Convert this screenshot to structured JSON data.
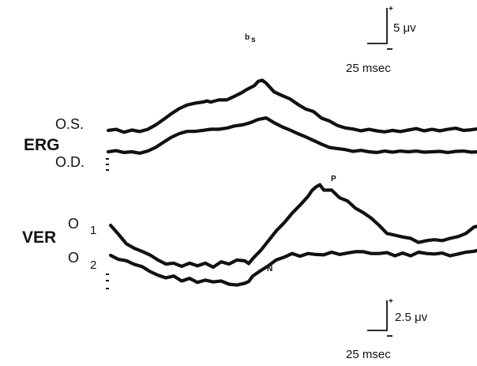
{
  "chart_data": [
    {
      "type": "line",
      "title": "",
      "group_label": "ERG",
      "xlabel": "",
      "ylabel": "",
      "x_scale_bar": "25 msec",
      "y_scale_bar": "5 μv",
      "peak_labels": [
        {
          "text": "b",
          "subscript": "s",
          "series": "O.S."
        }
      ],
      "series": [
        {
          "name": "O.S.",
          "points": [
            [
              0,
              0
            ],
            [
              10,
              0.3
            ],
            [
              20,
              -0.5
            ],
            [
              30,
              0.1
            ],
            [
              40,
              -0.3
            ],
            [
              50,
              0.3
            ],
            [
              60,
              1.5
            ],
            [
              70,
              3
            ],
            [
              80,
              4.6
            ],
            [
              90,
              6
            ],
            [
              100,
              7
            ],
            [
              110,
              7.5
            ],
            [
              120,
              7.8
            ],
            [
              125,
              8.1
            ],
            [
              130,
              7.8
            ],
            [
              140,
              8.4
            ],
            [
              150,
              8.4
            ],
            [
              160,
              9.4
            ],
            [
              170,
              10.5
            ],
            [
              175,
              11.2
            ],
            [
              185,
              12.3
            ],
            [
              190,
              13.5
            ],
            [
              195,
              13.8
            ],
            [
              200,
              13
            ],
            [
              210,
              10.6
            ],
            [
              220,
              9.6
            ],
            [
              230,
              8.7
            ],
            [
              240,
              7.2
            ],
            [
              250,
              5.9
            ],
            [
              260,
              5.2
            ],
            [
              270,
              3.4
            ],
            [
              280,
              2.6
            ],
            [
              290,
              1.4
            ],
            [
              300,
              0.7
            ],
            [
              310,
              0.4
            ],
            [
              320,
              -0.1
            ],
            [
              330,
              0.3
            ],
            [
              340,
              -0.1
            ],
            [
              350,
              -0.4
            ],
            [
              360,
              0
            ],
            [
              370,
              -0.3
            ],
            [
              380,
              0.1
            ],
            [
              390,
              0.5
            ],
            [
              400,
              -0.1
            ],
            [
              410,
              0.3
            ],
            [
              420,
              -0.1
            ],
            [
              430,
              0.3
            ],
            [
              440,
              0.6
            ],
            [
              450,
              0
            ],
            [
              460,
              0.2
            ],
            [
              470,
              0.5
            ]
          ]
        },
        {
          "name": "O.D.",
          "points": [
            [
              0,
              0
            ],
            [
              10,
              0.3
            ],
            [
              20,
              -0.2
            ],
            [
              30,
              0
            ],
            [
              40,
              -0.4
            ],
            [
              50,
              0.2
            ],
            [
              60,
              1.2
            ],
            [
              70,
              2.6
            ],
            [
              80,
              4
            ],
            [
              90,
              5
            ],
            [
              100,
              5.6
            ],
            [
              110,
              5.6
            ],
            [
              120,
              5.9
            ],
            [
              130,
              6.2
            ],
            [
              140,
              6.2
            ],
            [
              150,
              6.5
            ],
            [
              160,
              7.1
            ],
            [
              170,
              7.4
            ],
            [
              180,
              8
            ],
            [
              190,
              8.9
            ],
            [
              200,
              9.3
            ],
            [
              210,
              8
            ],
            [
              220,
              6.9
            ],
            [
              230,
              6
            ],
            [
              240,
              5
            ],
            [
              250,
              4.1
            ],
            [
              260,
              3.1
            ],
            [
              270,
              2.1
            ],
            [
              280,
              1.2
            ],
            [
              290,
              0.9
            ],
            [
              300,
              0.6
            ],
            [
              310,
              0.1
            ],
            [
              320,
              0.4
            ],
            [
              330,
              0
            ],
            [
              340,
              -0.2
            ],
            [
              350,
              0.2
            ],
            [
              360,
              -0.1
            ],
            [
              370,
              0.2
            ],
            [
              380,
              0
            ],
            [
              390,
              0.2
            ],
            [
              400,
              -0.1
            ],
            [
              410,
              0
            ],
            [
              420,
              0.1
            ],
            [
              430,
              -0.2
            ],
            [
              440,
              0.1
            ],
            [
              450,
              0.2
            ],
            [
              460,
              -0.1
            ],
            [
              470,
              0
            ]
          ]
        }
      ]
    },
    {
      "type": "line",
      "title": "",
      "group_label": "VER",
      "xlabel": "",
      "ylabel": "",
      "x_scale_bar": "25 msec",
      "y_scale_bar": "2.5 μv",
      "peak_labels": [
        {
          "text": "P",
          "series": "O1"
        },
        {
          "text": "N",
          "series": "O1"
        }
      ],
      "series": [
        {
          "name": "O1",
          "label_main": "O",
          "label_sub": "1",
          "points": [
            [
              0,
              0
            ],
            [
              3,
              -0.6
            ],
            [
              10,
              -2
            ],
            [
              20,
              -4.1
            ],
            [
              30,
              -5.1
            ],
            [
              40,
              -5.8
            ],
            [
              50,
              -6.6
            ],
            [
              60,
              -7.7
            ],
            [
              70,
              -8.6
            ],
            [
              80,
              -8.4
            ],
            [
              90,
              -9.1
            ],
            [
              100,
              -8.4
            ],
            [
              110,
              -9
            ],
            [
              120,
              -8.4
            ],
            [
              130,
              -9.3
            ],
            [
              140,
              -8.1
            ],
            [
              150,
              -8.6
            ],
            [
              160,
              -7.7
            ],
            [
              170,
              -7.9
            ],
            [
              175,
              -8.5
            ],
            [
              180,
              -7.4
            ],
            [
              190,
              -5.6
            ],
            [
              200,
              -3.4
            ],
            [
              210,
              -1.2
            ],
            [
              220,
              0.6
            ],
            [
              230,
              2.7
            ],
            [
              240,
              4.5
            ],
            [
              250,
              6.4
            ],
            [
              255,
              7.7
            ],
            [
              260,
              8.5
            ],
            [
              265,
              9
            ],
            [
              270,
              7.8
            ],
            [
              280,
              7.8
            ],
            [
              290,
              6.1
            ],
            [
              300,
              5.4
            ],
            [
              310,
              3.8
            ],
            [
              320,
              2.8
            ],
            [
              330,
              1.6
            ],
            [
              340,
              0
            ],
            [
              350,
              -1.8
            ],
            [
              360,
              -2.2
            ],
            [
              370,
              -2.6
            ],
            [
              380,
              -2.9
            ],
            [
              390,
              -3.8
            ],
            [
              400,
              -3.4
            ],
            [
              410,
              -3.2
            ],
            [
              420,
              -3.4
            ],
            [
              430,
              -2.9
            ],
            [
              440,
              -2.5
            ],
            [
              450,
              -1.8
            ],
            [
              460,
              -0.4
            ],
            [
              465,
              -0.2
            ]
          ]
        },
        {
          "name": "O2",
          "label_main": "O",
          "label_sub": "2",
          "points": [
            [
              0,
              0
            ],
            [
              10,
              -0.9
            ],
            [
              20,
              -1.2
            ],
            [
              30,
              -2
            ],
            [
              40,
              -2.5
            ],
            [
              50,
              -3.6
            ],
            [
              60,
              -4.4
            ],
            [
              70,
              -5
            ],
            [
              80,
              -4.6
            ],
            [
              90,
              -5.7
            ],
            [
              100,
              -5.1
            ],
            [
              110,
              -6
            ],
            [
              120,
              -5.5
            ],
            [
              130,
              -5.9
            ],
            [
              140,
              -5.7
            ],
            [
              150,
              -6.4
            ],
            [
              160,
              -6.6
            ],
            [
              170,
              -6.2
            ],
            [
              175,
              -5.8
            ],
            [
              180,
              -4.6
            ],
            [
              190,
              -3.4
            ],
            [
              200,
              -2.3
            ],
            [
              210,
              -1
            ],
            [
              220,
              -0.4
            ],
            [
              230,
              0.4
            ],
            [
              240,
              -0.2
            ],
            [
              250,
              0.4
            ],
            [
              260,
              0.2
            ],
            [
              270,
              0.1
            ],
            [
              280,
              0.7
            ],
            [
              290,
              0.2
            ],
            [
              300,
              0.5
            ],
            [
              310,
              0.8
            ],
            [
              320,
              0.8
            ],
            [
              330,
              0.4
            ],
            [
              340,
              0.4
            ],
            [
              350,
              0.6
            ],
            [
              360,
              -0.1
            ],
            [
              370,
              0.5
            ],
            [
              380,
              -0.1
            ],
            [
              390,
              0.7
            ],
            [
              400,
              0.4
            ],
            [
              410,
              0.3
            ],
            [
              420,
              0.5
            ],
            [
              430,
              -0.1
            ],
            [
              440,
              0.3
            ],
            [
              450,
              0.7
            ],
            [
              460,
              0.9
            ],
            [
              465,
              1.1
            ]
          ]
        }
      ]
    }
  ]
}
